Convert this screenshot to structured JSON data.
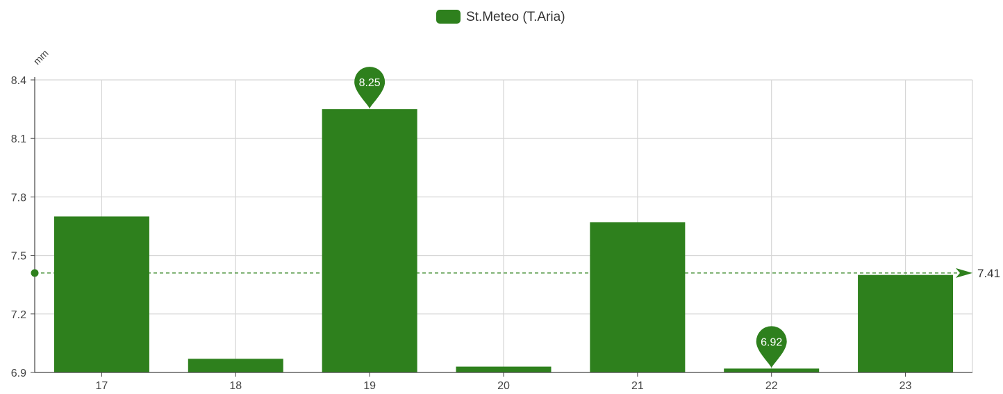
{
  "chart_data": {
    "type": "bar",
    "categories": [
      "17",
      "18",
      "19",
      "20",
      "21",
      "22",
      "23"
    ],
    "series": [
      {
        "name": "St.Meteo (T.Aria)",
        "color": "#2e801d",
        "values": [
          7.7,
          6.97,
          8.25,
          6.93,
          7.67,
          6.92,
          7.4
        ]
      }
    ],
    "yunit": "mm",
    "ylim": [
      6.9,
      8.4
    ],
    "yticks": [
      6.9,
      7.2,
      7.5,
      7.8,
      8.1,
      8.4
    ],
    "ytick_labels": [
      "6.9",
      "7.2",
      "7.5",
      "7.8",
      "8.1",
      "8.4"
    ],
    "grid": true,
    "legend_position": "top-center",
    "mark_points": [
      {
        "type": "max",
        "category": "19",
        "value": 8.25,
        "label": "8.25"
      },
      {
        "type": "min",
        "category": "22",
        "value": 6.92,
        "label": "6.92"
      }
    ],
    "mark_line": {
      "type": "average",
      "value": 7.41,
      "label": "7.41"
    }
  }
}
